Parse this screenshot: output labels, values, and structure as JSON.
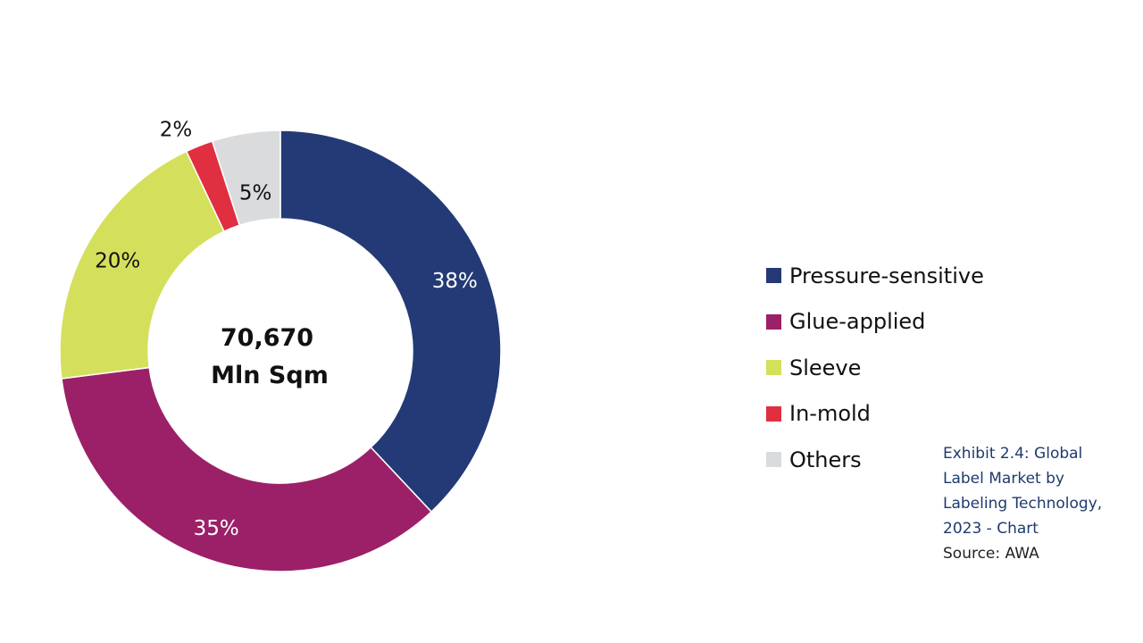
{
  "chart_data": {
    "type": "pie",
    "donut": true,
    "categories": [
      "Pressure-sensitive",
      "Glue-applied",
      "Sleeve",
      "In-mold",
      "Others"
    ],
    "values": [
      38,
      35,
      20,
      2,
      5
    ],
    "value_labels": [
      "38%",
      "35%",
      "20%",
      "2%",
      "5%"
    ],
    "colors": [
      "#233a76",
      "#9b2068",
      "#d4e05b",
      "#e02f41",
      "#dadbdc"
    ],
    "label_colors": [
      "#ffffff",
      "#ffffff",
      "#111111",
      "#111111",
      "#111111"
    ],
    "center_label": [
      "70,670",
      "Mln Sqm"
    ],
    "legend_placement": "right",
    "start_angle": "12 o'clock",
    "direction": "clockwise"
  },
  "caption": {
    "title_lines": [
      "Exhibit 2.4: Global",
      "Label Market by",
      "Labeling Technology,",
      "2023 - Chart"
    ],
    "source": "Source: AWA"
  }
}
